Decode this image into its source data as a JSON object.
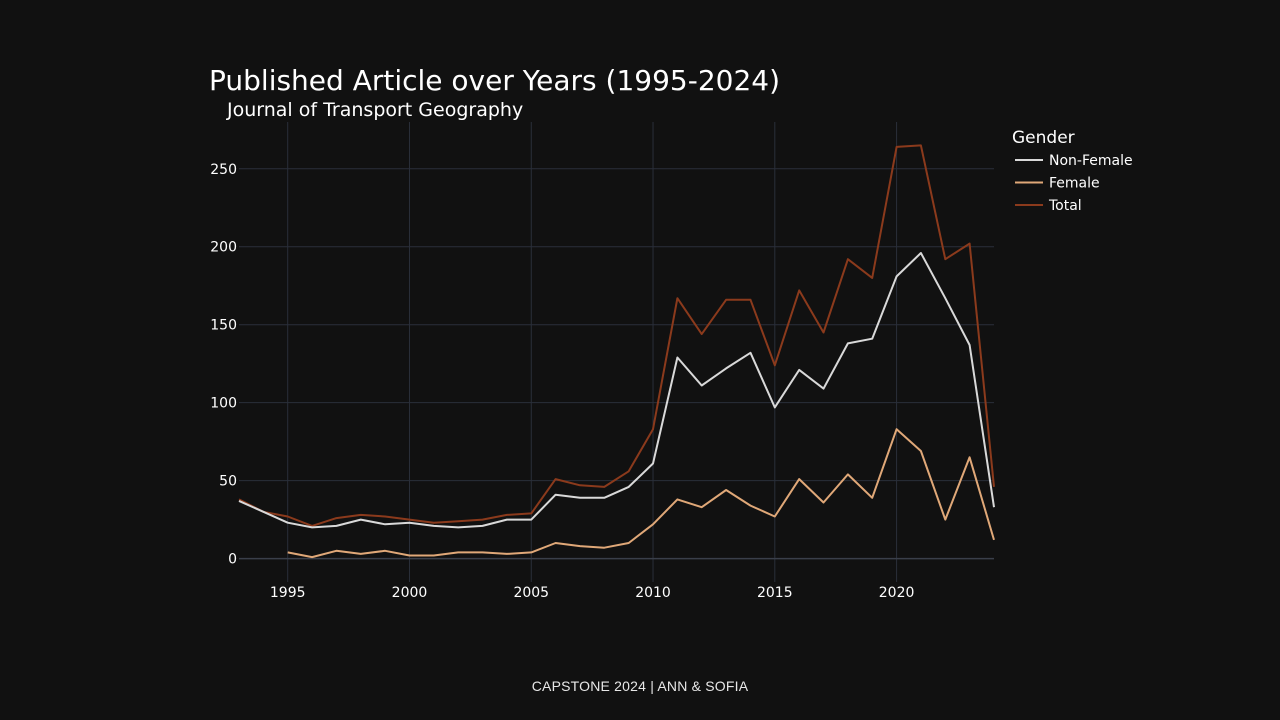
{
  "footer": "CAPSTONE 2024 | ANN & SOFIA",
  "chart_data": {
    "type": "line",
    "title": "Published Article over Years (1995-2024)",
    "subtitle": "Journal of Transport Geography",
    "xlabel": "",
    "ylabel": "",
    "xlim": [
      1993,
      2024
    ],
    "ylim": [
      -15,
      280
    ],
    "x_ticks": [
      1995,
      2000,
      2005,
      2010,
      2015,
      2020
    ],
    "y_ticks": [
      0,
      50,
      100,
      150,
      200,
      250
    ],
    "grid": true,
    "legend": {
      "title": "Gender",
      "position": "top-right"
    },
    "colors": {
      "background": "#111111",
      "grid": "#2a2f3a",
      "zeroline": "#3a3f4a",
      "axis_text": "#ffffff"
    },
    "series": [
      {
        "name": "Non-Female",
        "color": "#d9d9d9",
        "x": [
          1993,
          1994,
          1995,
          1996,
          1997,
          1998,
          1999,
          2000,
          2001,
          2002,
          2003,
          2004,
          2005,
          2006,
          2007,
          2008,
          2009,
          2010,
          2011,
          2012,
          2013,
          2014,
          2015,
          2016,
          2017,
          2018,
          2019,
          2020,
          2021,
          2022,
          2023,
          2024
        ],
        "values": [
          37,
          30,
          23,
          20,
          21,
          25,
          22,
          23,
          21,
          20,
          21,
          25,
          25,
          41,
          39,
          39,
          46,
          61,
          129,
          111,
          122,
          132,
          97,
          121,
          109,
          138,
          141,
          181,
          196,
          167,
          137,
          33
        ]
      },
      {
        "name": "Female",
        "color": "#e0a878",
        "x": [
          1995,
          1996,
          1997,
          1998,
          1999,
          2000,
          2001,
          2002,
          2003,
          2004,
          2005,
          2006,
          2007,
          2008,
          2009,
          2010,
          2011,
          2012,
          2013,
          2014,
          2015,
          2016,
          2017,
          2018,
          2019,
          2020,
          2021,
          2022,
          2023,
          2024
        ],
        "values": [
          4,
          1,
          5,
          3,
          5,
          2,
          2,
          4,
          4,
          3,
          4,
          10,
          8,
          7,
          10,
          22,
          38,
          33,
          44,
          34,
          27,
          51,
          36,
          54,
          39,
          83,
          69,
          25,
          65,
          12
        ]
      },
      {
        "name": "Total",
        "color": "#8b3a1c",
        "x": [
          1993,
          1994,
          1995,
          1996,
          1997,
          1998,
          1999,
          2000,
          2001,
          2002,
          2003,
          2004,
          2005,
          2006,
          2007,
          2008,
          2009,
          2010,
          2011,
          2012,
          2013,
          2014,
          2015,
          2016,
          2017,
          2018,
          2019,
          2020,
          2021,
          2022,
          2023,
          2024
        ],
        "values": [
          38,
          30,
          27,
          21,
          26,
          28,
          27,
          25,
          23,
          24,
          25,
          28,
          29,
          51,
          47,
          46,
          56,
          83,
          167,
          144,
          166,
          166,
          124,
          172,
          145,
          192,
          180,
          264,
          265,
          192,
          202,
          46
        ]
      }
    ]
  }
}
